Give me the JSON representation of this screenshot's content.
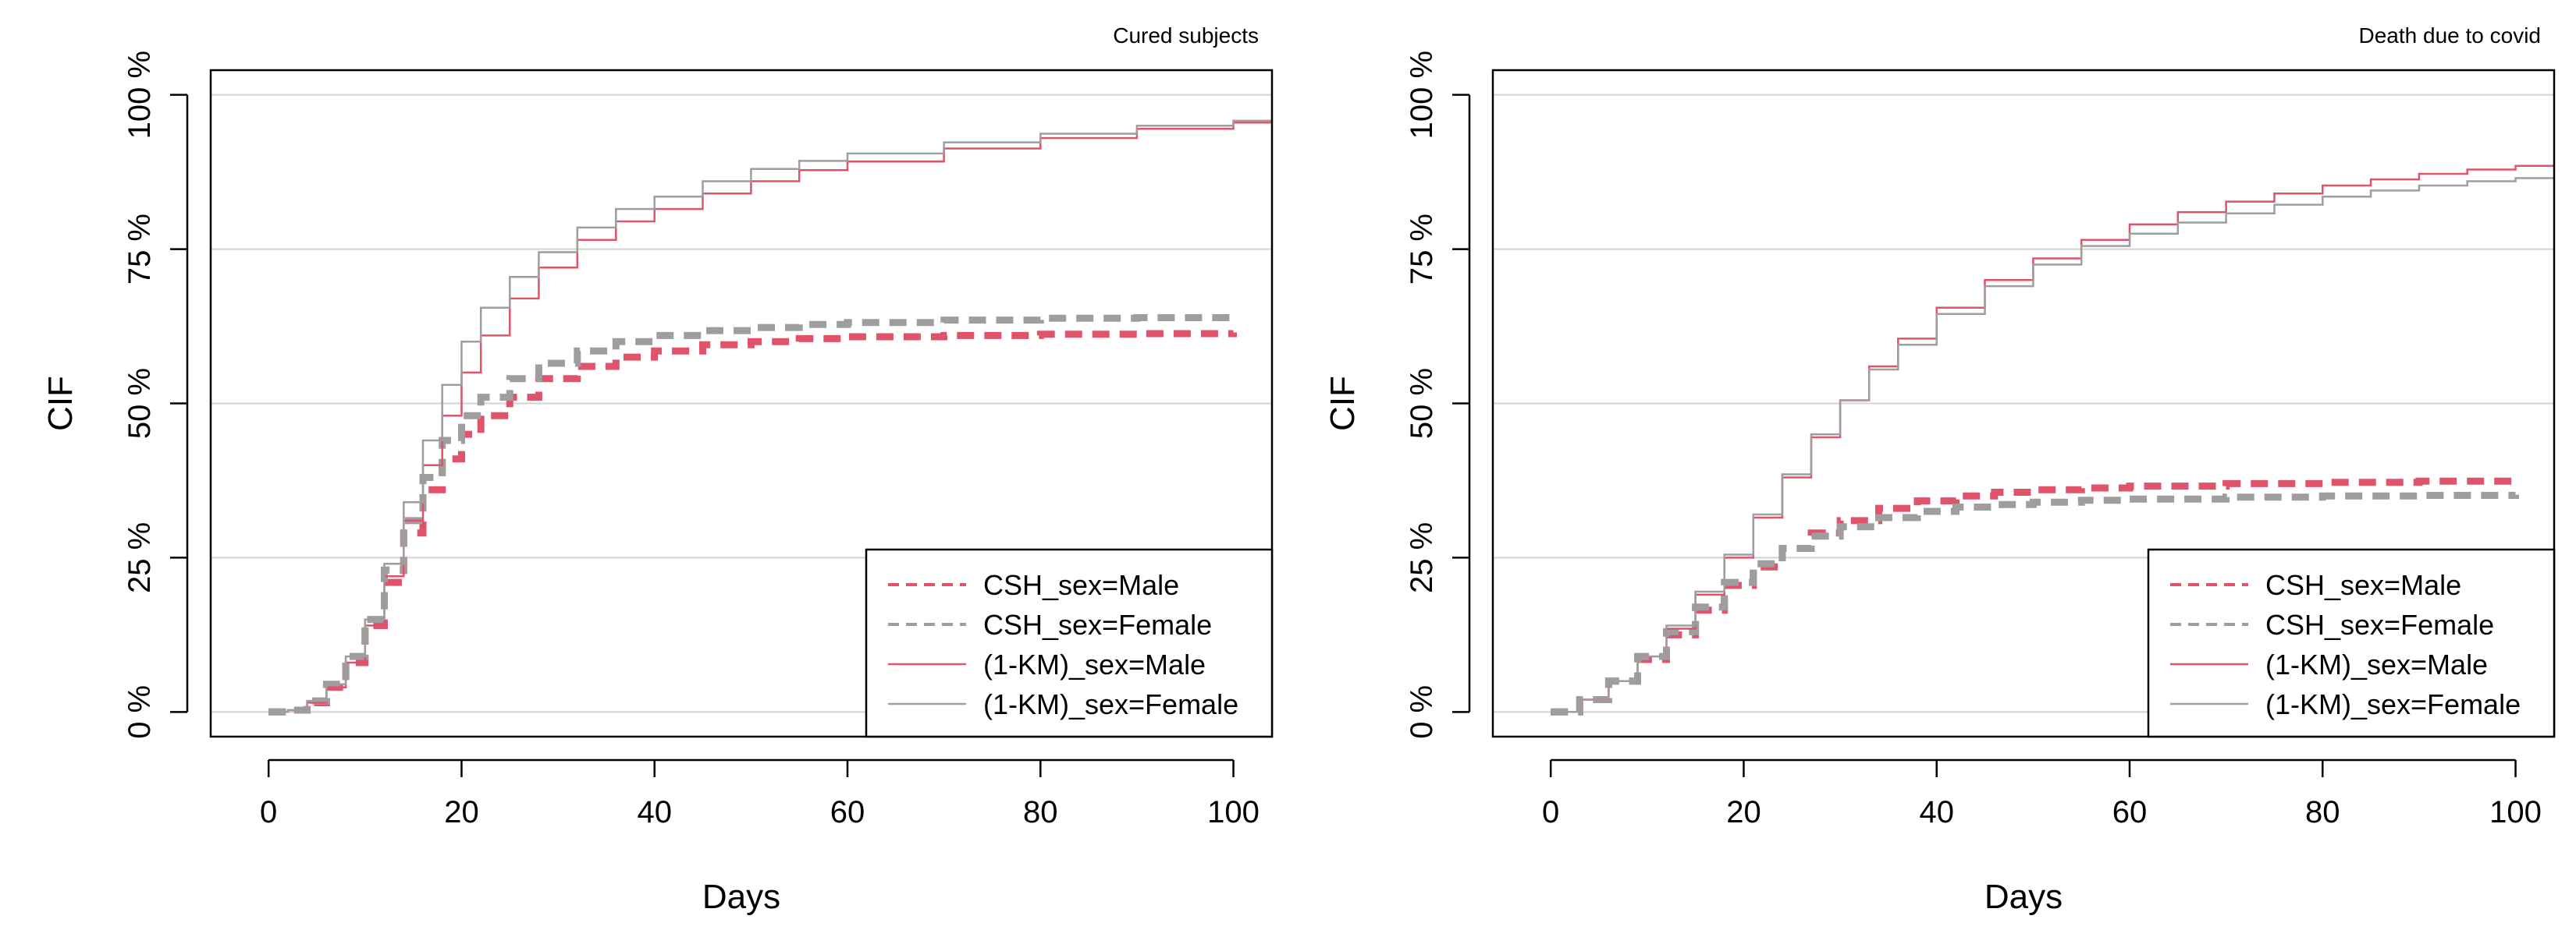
{
  "colors": {
    "male": "#df536b",
    "female": "#9e9e9e",
    "grid": "#d3d3d3",
    "axis": "#000000"
  },
  "chart_data": [
    {
      "type": "line",
      "title": "Cured subjects",
      "xlabel": "Days",
      "ylabel": "CIF",
      "xlim": [
        -6,
        104
      ],
      "ylim": [
        -4,
        104
      ],
      "x_ticks": [
        0,
        20,
        40,
        60,
        80,
        100
      ],
      "x_tick_labels": [
        "0",
        "20",
        "40",
        "60",
        "80",
        "100"
      ],
      "y_ticks": [
        0,
        25,
        50,
        75,
        100
      ],
      "y_tick_labels": [
        "0 %",
        "25 %",
        "50 %",
        "75 %",
        "100 %"
      ],
      "grid": "horizontal",
      "legend_position": "bottom-right",
      "series": [
        {
          "name": "CSH_sex=Male",
          "style": "dashed",
          "color_key": "male",
          "x": [
            0,
            2,
            4,
            6,
            8,
            10,
            12,
            14,
            16,
            18,
            20,
            22,
            25,
            28,
            32,
            36,
            40,
            45,
            50,
            55,
            60,
            70,
            80,
            90,
            100
          ],
          "y": [
            0,
            0.3,
            1.5,
            4,
            8,
            14,
            21,
            29,
            36,
            41,
            45,
            48,
            51,
            54,
            56,
            57.5,
            58.5,
            59.5,
            60,
            60.5,
            60.8,
            61,
            61.2,
            61.3,
            61.5
          ]
        },
        {
          "name": "CSH_sex=Female",
          "style": "dashed",
          "color_key": "female",
          "x": [
            0,
            2,
            4,
            6,
            8,
            10,
            12,
            14,
            16,
            18,
            20,
            22,
            25,
            28,
            32,
            36,
            40,
            45,
            50,
            55,
            60,
            70,
            80,
            90,
            100
          ],
          "y": [
            0,
            0.3,
            1.8,
            4.5,
            9,
            15,
            23,
            31,
            38,
            44,
            48,
            51,
            54,
            56.5,
            58.5,
            60,
            61,
            61.8,
            62.3,
            62.8,
            63.1,
            63.5,
            63.8,
            63.9,
            64
          ]
        },
        {
          "name": "(1-KM)_sex=Male",
          "style": "solid",
          "color_key": "male",
          "x": [
            0,
            2,
            4,
            6,
            8,
            10,
            12,
            14,
            16,
            18,
            20,
            22,
            25,
            28,
            32,
            36,
            40,
            45,
            50,
            55,
            60,
            70,
            80,
            90,
            100,
            104
          ],
          "y": [
            0,
            0.3,
            1.5,
            4,
            8,
            14,
            22,
            31,
            40,
            48,
            55,
            61,
            67,
            72,
            76.5,
            79.5,
            81.5,
            84,
            86,
            87.8,
            89.2,
            91.3,
            93,
            94.5,
            95.5,
            96
          ]
        },
        {
          "name": "(1-KM)_sex=Female",
          "style": "solid",
          "color_key": "female",
          "x": [
            0,
            2,
            4,
            6,
            8,
            10,
            12,
            14,
            16,
            18,
            20,
            22,
            25,
            28,
            32,
            36,
            40,
            45,
            50,
            55,
            60,
            70,
            80,
            90,
            100,
            104
          ],
          "y": [
            0,
            0.3,
            1.8,
            4.5,
            9,
            15,
            24,
            34,
            44,
            53,
            60,
            65.5,
            70.5,
            74.5,
            78.5,
            81.5,
            83.5,
            86,
            88,
            89.3,
            90.5,
            92.3,
            93.7,
            95,
            95.8,
            96.3
          ]
        }
      ]
    },
    {
      "type": "line",
      "title": "Death due to covid",
      "xlabel": "Days",
      "ylabel": "CIF",
      "xlim": [
        -6,
        104
      ],
      "ylim": [
        -4,
        104
      ],
      "x_ticks": [
        0,
        20,
        40,
        60,
        80,
        100
      ],
      "x_tick_labels": [
        "0",
        "20",
        "40",
        "60",
        "80",
        "100"
      ],
      "y_ticks": [
        0,
        25,
        50,
        75,
        100
      ],
      "y_tick_labels": [
        "0 %",
        "25 %",
        "50 %",
        "75 %",
        "100 %"
      ],
      "grid": "horizontal",
      "legend_position": "bottom-right",
      "series": [
        {
          "name": "CSH_sex=Male",
          "style": "dashed",
          "color_key": "male",
          "x": [
            0,
            3,
            6,
            9,
            12,
            15,
            18,
            21,
            24,
            27,
            30,
            34,
            38,
            42,
            46,
            50,
            55,
            60,
            70,
            80,
            90,
            100
          ],
          "y": [
            0,
            2,
            5,
            8.5,
            12.5,
            16.5,
            20.5,
            23.5,
            26.5,
            29,
            31,
            33,
            34.2,
            35,
            35.6,
            36,
            36.3,
            36.6,
            37,
            37.2,
            37.4,
            37.5
          ]
        },
        {
          "name": "CSH_sex=Female",
          "style": "dashed",
          "color_key": "female",
          "x": [
            0,
            3,
            6,
            9,
            12,
            15,
            18,
            21,
            24,
            27,
            30,
            34,
            38,
            42,
            46,
            50,
            55,
            60,
            70,
            80,
            90,
            100
          ],
          "y": [
            0,
            2,
            5,
            9,
            13,
            17,
            21,
            24,
            26.5,
            28.5,
            30,
            31.5,
            32.5,
            33.2,
            33.6,
            34,
            34.3,
            34.5,
            34.8,
            35,
            35.1,
            35.2
          ]
        },
        {
          "name": "(1-KM)_sex=Male",
          "style": "solid",
          "color_key": "male",
          "x": [
            0,
            3,
            6,
            9,
            12,
            15,
            18,
            21,
            24,
            27,
            30,
            33,
            36,
            40,
            45,
            50,
            55,
            60,
            65,
            70,
            75,
            80,
            85,
            90,
            95,
            100,
            104
          ],
          "y": [
            0,
            2,
            5,
            9,
            13.5,
            19,
            25,
            31.5,
            38,
            44.5,
            50.5,
            56,
            60.5,
            65.5,
            70,
            73.5,
            76.5,
            79,
            81,
            82.7,
            84,
            85.3,
            86.3,
            87.2,
            87.9,
            88.5,
            88.8
          ]
        },
        {
          "name": "(1-KM)_sex=Female",
          "style": "solid",
          "color_key": "female",
          "x": [
            0,
            3,
            6,
            9,
            12,
            15,
            18,
            21,
            24,
            27,
            30,
            33,
            36,
            40,
            45,
            50,
            55,
            60,
            65,
            70,
            75,
            80,
            85,
            90,
            95,
            100,
            104
          ],
          "y": [
            0,
            2,
            5,
            9,
            14,
            19.5,
            25.5,
            32,
            38.5,
            45,
            50.5,
            55.5,
            59.5,
            64.5,
            69,
            72.5,
            75.5,
            77.5,
            79.3,
            80.8,
            82.2,
            83.5,
            84.5,
            85.3,
            86,
            86.5,
            86.8
          ]
        }
      ]
    }
  ]
}
